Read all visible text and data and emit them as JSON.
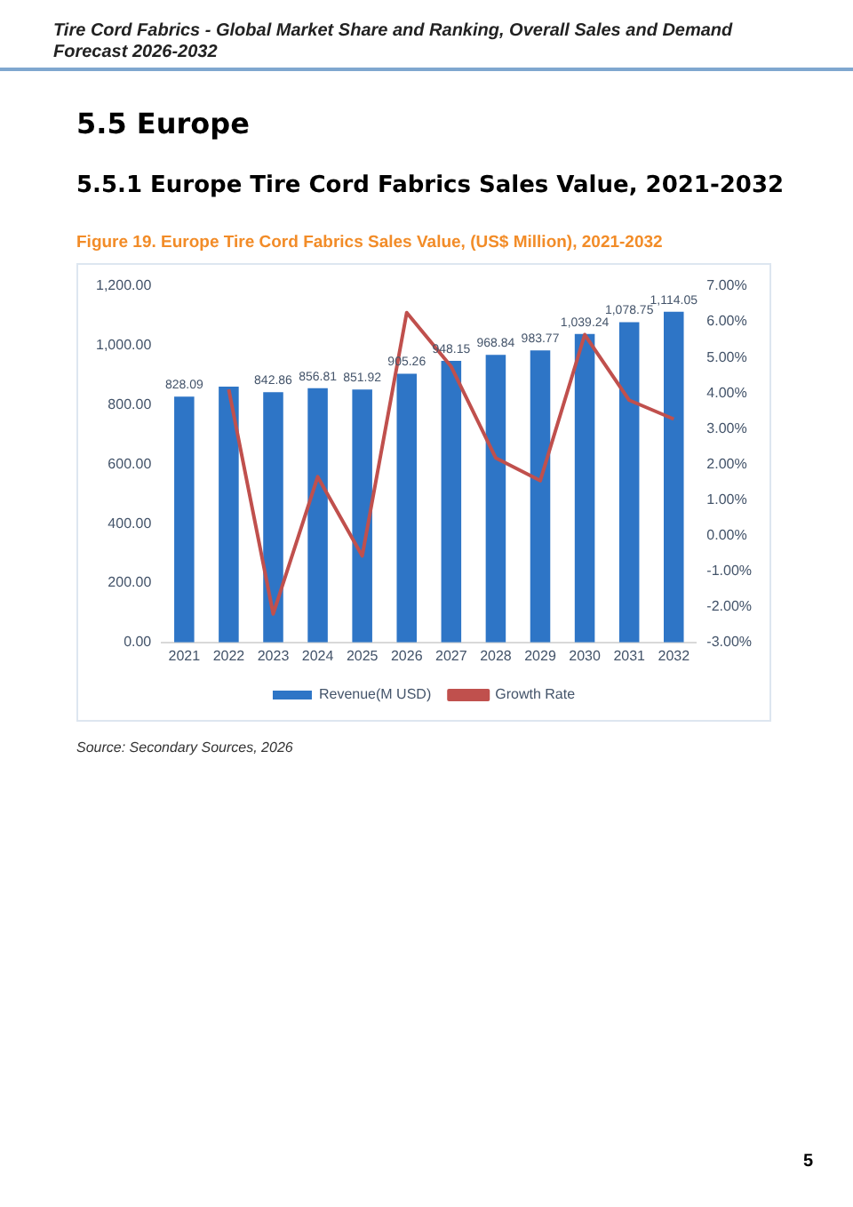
{
  "chart_data": {
    "type": "bar",
    "title": "Figure 19.   Europe Tire Cord Fabrics Sales Value, (US$ Million), 2021-2032",
    "annotations": [
      "Tire Cord Fabrics - Global Market Share and Ranking, Overall Sales and Demand Forecast 2026-2032",
      "5.5  Europe",
      "5.5.1  Europe Tire Cord Fabrics Sales Value, 2021-2032",
      "Source: Secondary Sources, 2026",
      "5"
    ],
    "categories": [
      "2021",
      "2022",
      "2023",
      "2024",
      "2025",
      "2026",
      "2027",
      "2028",
      "2029",
      "2030",
      "2031",
      "2032"
    ],
    "series": [
      {
        "name": "Revenue(M USD)",
        "color": "#2e75c6",
        "values": [
          828.09,
          862,
          842.86,
          856.81,
          851.92,
          905.26,
          948.15,
          968.84,
          983.77,
          1039.24,
          1078.75,
          1114.05
        ],
        "value_labels": [
          "828.09",
          null,
          "842.86",
          "856.81",
          "851.92",
          "905.26",
          "948.15",
          "968.84",
          "983.77",
          "1,039.24",
          "1,078.75",
          "1,114.05"
        ]
      },
      {
        "name": "Growth Rate",
        "type": "line",
        "axis": "y2",
        "color": "#c0504d",
        "marker": "none",
        "values": [
          null,
          4.1,
          -2.2,
          1.65,
          -0.57,
          6.26,
          4.74,
          2.18,
          1.54,
          5.64,
          3.8,
          3.27
        ]
      }
    ],
    "ylim": [
      0,
      1200
    ],
    "yticks": [
      {
        "value": 0,
        "label": "0.00"
      },
      {
        "value": 200,
        "label": "200.00"
      },
      {
        "value": 400,
        "label": "400.00"
      },
      {
        "value": 600,
        "label": "600.00"
      },
      {
        "value": 800,
        "label": "800.00"
      },
      {
        "value": 1000,
        "label": "1,000.00"
      },
      {
        "value": 1200,
        "label": "1,200.00"
      }
    ],
    "y2lim": [
      -3,
      7
    ],
    "y2ticks": [
      {
        "value": -3,
        "label": "-3.00%"
      },
      {
        "value": -2,
        "label": "-2.00%"
      },
      {
        "value": -1,
        "label": "-1.00%"
      },
      {
        "value": 0,
        "label": "0.00%"
      },
      {
        "value": 1,
        "label": "1.00%"
      },
      {
        "value": 2,
        "label": "2.00%"
      },
      {
        "value": 3,
        "label": "3.00%"
      },
      {
        "value": 4,
        "label": "4.00%"
      },
      {
        "value": 5,
        "label": "5.00%"
      },
      {
        "value": 6,
        "label": "6.00%"
      },
      {
        "value": 7,
        "label": "7.00%"
      }
    ],
    "grid": false,
    "legend": "bottom"
  }
}
